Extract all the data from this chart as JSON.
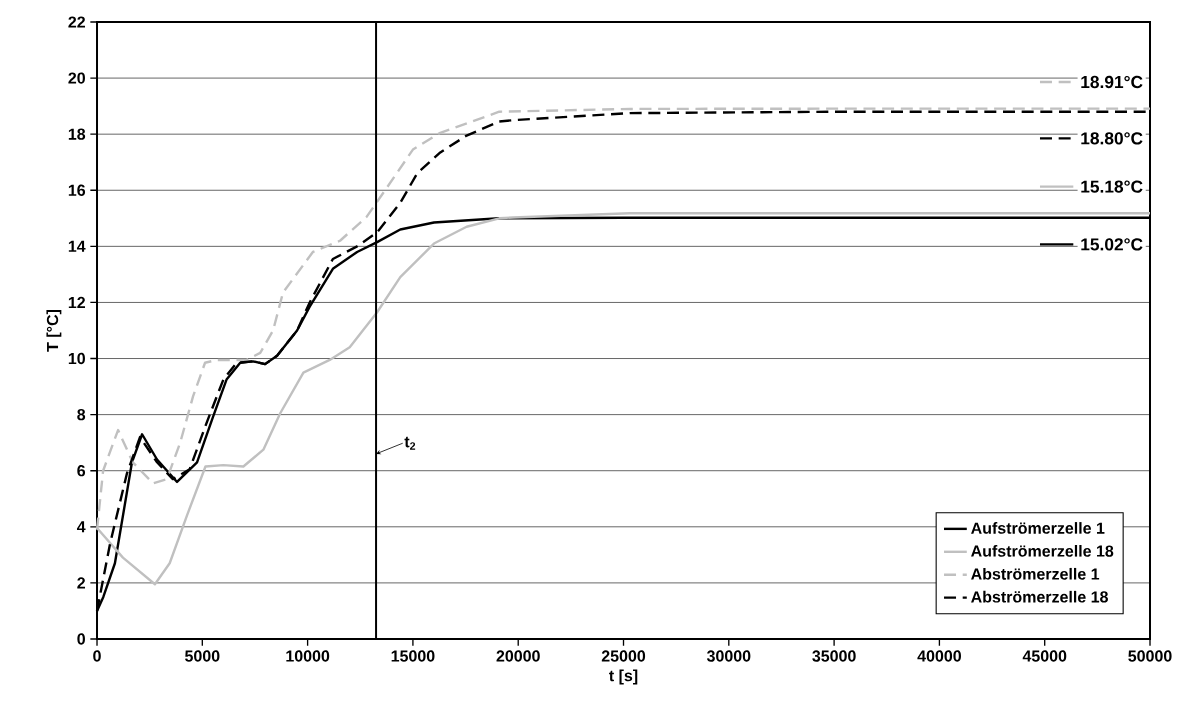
{
  "chart_data": {
    "type": "line",
    "xlabel": "t [s]",
    "ylabel": "T [°C]",
    "xlim": [
      0,
      50000
    ],
    "ylim": [
      0,
      22
    ],
    "xticks": [
      0,
      5000,
      10000,
      15000,
      20000,
      25000,
      30000,
      35000,
      40000,
      45000,
      50000
    ],
    "yticks": [
      0,
      2,
      4,
      6,
      8,
      10,
      12,
      14,
      16,
      18,
      20,
      22
    ],
    "grid": "y",
    "legend": "bottom right",
    "series": [
      {
        "name": "Aufströmerzelle 1",
        "color": "#000000",
        "line_style": "solid",
        "x": [
          0,
          300,
          850,
          1660,
          2140,
          2850,
          3800,
          4750,
          5500,
          6150,
          6800,
          7400,
          7980,
          8550,
          9500,
          10100,
          11200,
          12350,
          13300,
          14400,
          16000,
          19100,
          25000,
          35000,
          50000
        ],
        "values": [
          1.0,
          1.5,
          2.7,
          6.3,
          7.3,
          6.4,
          5.6,
          6.3,
          7.9,
          9.25,
          9.85,
          9.9,
          9.8,
          10.1,
          11.0,
          11.85,
          13.2,
          13.8,
          14.15,
          14.6,
          14.85,
          15.0,
          15.02,
          15.02,
          15.02
        ]
      },
      {
        "name": "Aufströmerzelle 18",
        "color": "#c0c0c0",
        "line_style": "solid",
        "x": [
          0,
          1230,
          2750,
          3450,
          4270,
          5150,
          6000,
          6950,
          7900,
          8700,
          9800,
          11050,
          12000,
          13300,
          14400,
          16000,
          17550,
          19100,
          19750,
          25300,
          35000,
          50000
        ],
        "values": [
          3.96,
          2.9,
          1.95,
          2.7,
          4.4,
          6.15,
          6.2,
          6.15,
          6.75,
          8.05,
          9.5,
          9.95,
          10.4,
          11.65,
          12.9,
          14.1,
          14.7,
          15.0,
          15.03,
          15.18,
          15.18,
          15.18
        ]
      },
      {
        "name": "Abströmerzelle 1",
        "color": "#c0c0c0",
        "line_style": "dashed",
        "x": [
          0,
          290,
          1000,
          1700,
          2660,
          3320,
          3950,
          4560,
          5130,
          5700,
          7100,
          7750,
          8360,
          8830,
          10250,
          11540,
          12800,
          13770,
          15000,
          16300,
          19100,
          25300,
          35000,
          50000
        ],
        "values": [
          3.9,
          6.0,
          7.45,
          6.3,
          5.55,
          5.7,
          7.0,
          8.65,
          9.85,
          9.95,
          9.95,
          10.2,
          11.0,
          12.35,
          13.8,
          14.2,
          15.05,
          16.1,
          17.45,
          18.05,
          18.8,
          18.9,
          18.91,
          18.91
        ]
      },
      {
        "name": "Abströmerzelle 18",
        "color": "#000000",
        "line_style": "dashed",
        "x": [
          0,
          620,
          1420,
          2040,
          2850,
          3600,
          4400,
          5200,
          6000,
          6630,
          7400,
          7980,
          8550,
          9500,
          10100,
          11200,
          12350,
          13300,
          14400,
          15200,
          16300,
          17550,
          19100,
          19750,
          25300,
          35000,
          50000
        ],
        "values": [
          1.0,
          3.4,
          5.9,
          7.2,
          6.3,
          5.7,
          6.05,
          7.7,
          9.25,
          9.85,
          9.9,
          9.8,
          10.1,
          11.0,
          12.0,
          13.55,
          14.0,
          14.5,
          15.55,
          16.6,
          17.35,
          17.95,
          18.45,
          18.5,
          18.75,
          18.8,
          18.8
        ]
      }
    ],
    "ref_lines": [
      {
        "axis": "x",
        "value": 13250,
        "label": "t$_{2}$",
        "color": "#000000"
      }
    ],
    "annotations": [
      {
        "text": "18.91°C",
        "y": 18.91
      },
      {
        "text": "18.80°C",
        "y": 18.8
      },
      {
        "text": "15.18°C",
        "y": 15.18
      },
      {
        "text": "15.02°C",
        "y": 15.02
      }
    ]
  }
}
